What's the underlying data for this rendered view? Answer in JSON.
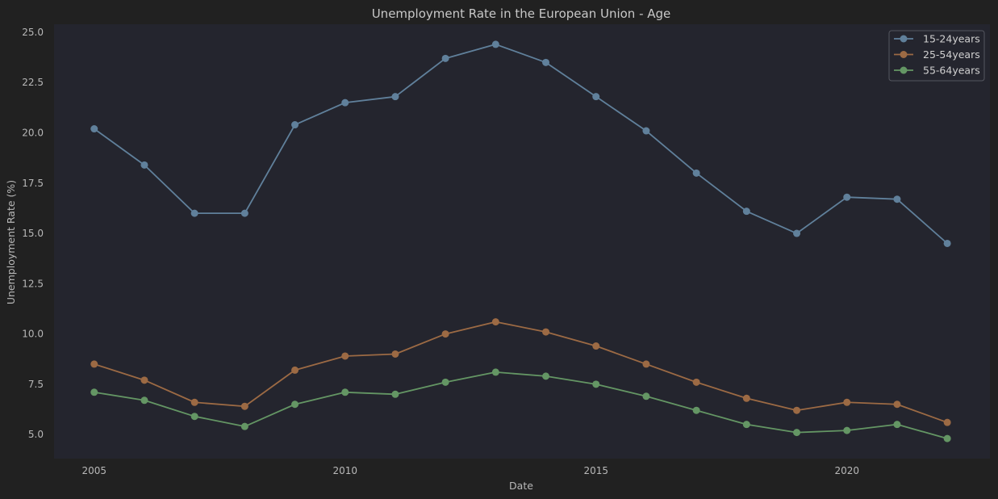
{
  "chart_data": {
    "type": "line",
    "title": "Unemployment Rate in the European Union - Age",
    "xlabel": "Date",
    "ylabel": "Unemployment Rate (%)",
    "x": [
      2005,
      2006,
      2007,
      2008,
      2009,
      2010,
      2011,
      2012,
      2013,
      2014,
      2015,
      2016,
      2017,
      2018,
      2019,
      2020,
      2021,
      2022
    ],
    "xticks": [
      2005,
      2010,
      2015,
      2020
    ],
    "yticks": [
      5.0,
      7.5,
      10.0,
      12.5,
      15.0,
      17.5,
      20.0,
      22.5,
      25.0
    ],
    "xlim": [
      2004.2,
      2022.85
    ],
    "ylim": [
      3.8,
      25.4
    ],
    "grid": false,
    "legend_position": "top-right",
    "colors": {
      "figure_background": "#212121",
      "plot_background": "#24252e",
      "text": "#b8b8b8"
    },
    "series": [
      {
        "name": "15-24years",
        "color": "#60809b",
        "values": [
          20.2,
          18.4,
          16.0,
          16.0,
          20.4,
          21.5,
          21.8,
          23.7,
          24.4,
          23.5,
          21.8,
          20.1,
          18.0,
          16.1,
          15.0,
          16.8,
          16.7,
          14.5
        ]
      },
      {
        "name": "25-54years",
        "color": "#9c6a44",
        "values": [
          8.5,
          7.7,
          6.6,
          6.4,
          8.2,
          8.9,
          9.0,
          10.0,
          10.6,
          10.1,
          9.4,
          8.5,
          7.6,
          6.8,
          6.2,
          6.6,
          6.5,
          5.6
        ]
      },
      {
        "name": "55-64years",
        "color": "#649664",
        "values": [
          7.1,
          6.7,
          5.9,
          5.4,
          6.5,
          7.1,
          7.0,
          7.6,
          8.1,
          7.9,
          7.5,
          6.9,
          6.2,
          5.5,
          5.1,
          5.2,
          5.5,
          4.8
        ]
      }
    ]
  }
}
